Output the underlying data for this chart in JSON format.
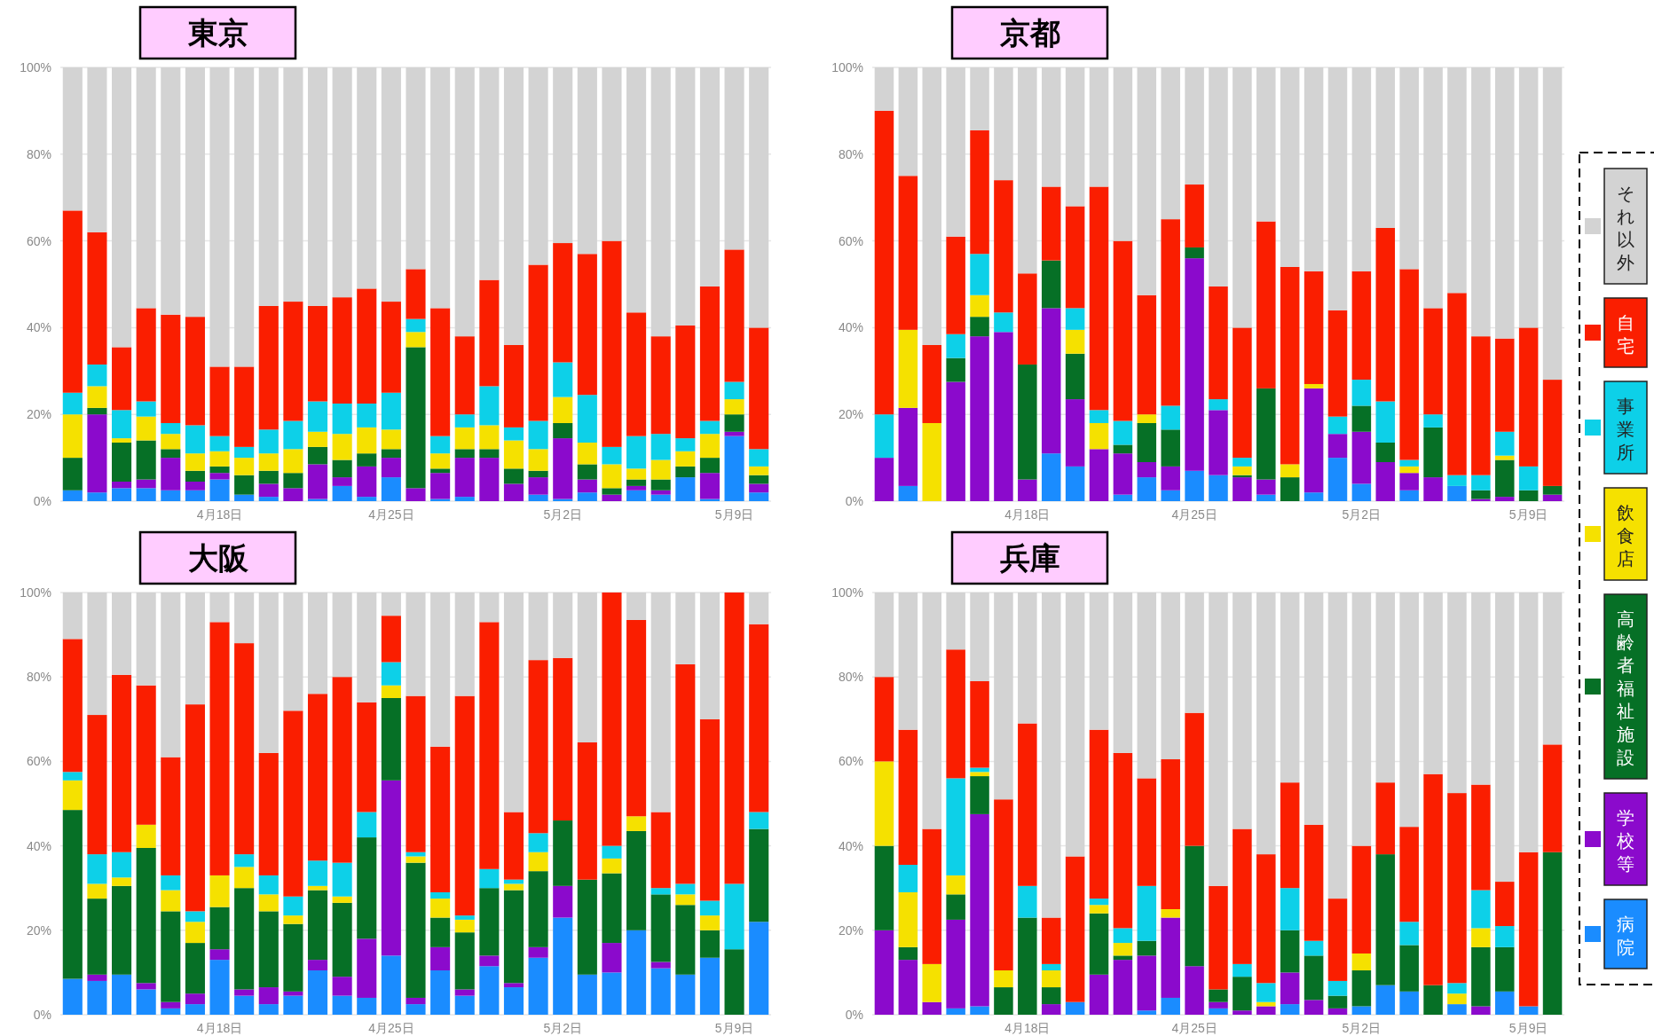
{
  "chart_data": [
    {
      "type": "bar",
      "title": "東京",
      "stacked": true,
      "grid": "y",
      "ylim": [
        0,
        100
      ],
      "yticks": [
        {
          "value": 0,
          "label": "0%"
        },
        {
          "value": 20,
          "label": "20%"
        },
        {
          "value": 40,
          "label": "40%"
        },
        {
          "value": 60,
          "label": "60%"
        },
        {
          "value": 80,
          "label": "80%"
        },
        {
          "value": 100,
          "label": "100%"
        }
      ],
      "categories": [
        null,
        null,
        null,
        null,
        null,
        null,
        "4月18日",
        null,
        null,
        null,
        null,
        null,
        null,
        "4月25日",
        null,
        null,
        null,
        null,
        null,
        null,
        "5月2日",
        null,
        null,
        null,
        null,
        null,
        null,
        "5月9日",
        null
      ],
      "series": [
        {
          "color": "#1a8cff",
          "values": [
            2.5,
            2,
            3,
            3,
            2.5,
            2.5,
            5,
            1.5,
            1,
            0,
            0.5,
            3.5,
            1,
            5.5,
            0,
            0.5,
            1,
            0,
            0,
            1.5,
            0.5,
            2,
            0,
            2.5,
            1.5,
            5.5,
            0.5,
            15,
            2
          ]
        },
        {
          "color": "#8b0acc",
          "values": [
            0,
            18,
            1.5,
            2,
            7.5,
            2,
            1.5,
            0,
            3,
            3,
            8,
            2,
            7,
            4.5,
            3,
            6,
            9,
            10,
            4,
            4,
            14,
            3,
            1.5,
            1,
            1,
            0,
            6,
            1,
            2
          ]
        },
        {
          "color": "#067026",
          "values": [
            7.5,
            1.5,
            9,
            9,
            2,
            2.5,
            1.5,
            4.5,
            3,
            3.5,
            4,
            4,
            3,
            2,
            32.5,
            1,
            2,
            2,
            3.5,
            1.5,
            3.5,
            3.5,
            1.5,
            1.5,
            2.5,
            2.5,
            3.5,
            4,
            2
          ]
        },
        {
          "color": "#f5e100",
          "values": [
            10,
            5,
            1,
            5.5,
            3.5,
            4,
            3.5,
            4,
            4,
            5.5,
            3.5,
            6,
            6,
            4.5,
            3.5,
            3.5,
            5,
            5.5,
            6.5,
            5,
            6,
            5,
            5.5,
            2.5,
            4.5,
            3.5,
            5.5,
            3.5,
            2
          ]
        },
        {
          "color": "#0dd0e8",
          "values": [
            5,
            5,
            6.5,
            3.5,
            2.5,
            6.5,
            3.5,
            2.5,
            5.5,
            6.5,
            7,
            7,
            5.5,
            8.5,
            3,
            4,
            3,
            9,
            3,
            6.5,
            8,
            11,
            4,
            7.5,
            6,
            3,
            3,
            4,
            4
          ]
        },
        {
          "color": "#fa1e00",
          "values": [
            42,
            30.5,
            14.5,
            21.5,
            25,
            25,
            16,
            18.5,
            28.5,
            27.5,
            22,
            24.5,
            26.5,
            21,
            11.5,
            29.5,
            18,
            24.5,
            19,
            36,
            27.5,
            32.5,
            47.5,
            28.5,
            22.5,
            26,
            31,
            30.5,
            28
          ]
        },
        {
          "color": "#d3d3d3",
          "values": [
            33,
            38,
            64.5,
            55.5,
            57,
            57.5,
            69,
            69,
            55,
            54,
            55,
            53,
            51,
            54,
            46.5,
            55.5,
            62,
            49,
            64,
            45.5,
            40.5,
            43,
            40,
            56.5,
            62,
            59.5,
            50.5,
            42,
            60
          ]
        }
      ]
    },
    {
      "type": "bar",
      "title": "京都",
      "stacked": true,
      "grid": "y",
      "legend": "right",
      "ylim": [
        0,
        100
      ],
      "yticks": [
        {
          "value": 0,
          "label": "0%"
        },
        {
          "value": 20,
          "label": "20%"
        },
        {
          "value": 40,
          "label": "40%"
        },
        {
          "value": 60,
          "label": "60%"
        },
        {
          "value": 80,
          "label": "80%"
        },
        {
          "value": 100,
          "label": "100%"
        }
      ],
      "categories": [
        null,
        null,
        null,
        null,
        null,
        null,
        "4月18日",
        null,
        null,
        null,
        null,
        null,
        null,
        "4月25日",
        null,
        null,
        null,
        null,
        null,
        null,
        "5月2日",
        null,
        null,
        null,
        null,
        null,
        null,
        "5月9日",
        null
      ],
      "series": [
        {
          "name": "病院",
          "color": "#1a8cff",
          "values": [
            0,
            3.5,
            0,
            0,
            0,
            0,
            0,
            11,
            8,
            0,
            1.5,
            5.5,
            2.5,
            7,
            6,
            0,
            1.5,
            0,
            2,
            10,
            4,
            0,
            2.5,
            0,
            3.5,
            0,
            0,
            0,
            0
          ]
        },
        {
          "name": "学校等",
          "color": "#8b0acc",
          "values": [
            10,
            18,
            0,
            27.5,
            38,
            39,
            5,
            33.5,
            15.5,
            12,
            9.5,
            3.5,
            5.5,
            49,
            15,
            5.5,
            3.5,
            0,
            24,
            5.5,
            12,
            9,
            4,
            5.5,
            0,
            0.5,
            1,
            0,
            1.5
          ]
        },
        {
          "name": "高齢者福祉施設",
          "color": "#067026",
          "values": [
            0,
            0,
            0,
            5.5,
            4.5,
            0,
            26.5,
            11,
            10.5,
            0,
            2,
            9,
            8.5,
            2.5,
            0,
            0.5,
            21,
            5.5,
            0,
            0,
            6,
            4.5,
            0,
            11.5,
            0,
            2,
            8.5,
            2.5,
            2
          ]
        },
        {
          "name": "飲食店",
          "color": "#f5e100",
          "values": [
            0,
            18,
            18,
            0,
            5,
            0,
            0,
            0,
            5.5,
            6,
            0,
            2,
            0,
            0,
            0,
            2,
            0,
            3,
            1,
            0,
            0,
            0,
            1.5,
            0,
            0,
            0,
            1,
            0,
            0
          ]
        },
        {
          "name": "事業所",
          "color": "#0dd0e8",
          "values": [
            10,
            0,
            0,
            5.5,
            9.5,
            4.5,
            0,
            0,
            5,
            3,
            5.5,
            0,
            5.5,
            0,
            2.5,
            2,
            0,
            0,
            0,
            4,
            6,
            9.5,
            1.5,
            3,
            2.5,
            3.5,
            5.5,
            5.5,
            0
          ]
        },
        {
          "name": "自宅",
          "color": "#fa1e00",
          "values": [
            70,
            35.5,
            18,
            22.5,
            28.5,
            30.5,
            21,
            17,
            23.5,
            51.5,
            41.5,
            27.5,
            43,
            14.5,
            26,
            30,
            38.5,
            45.5,
            26,
            24.5,
            25,
            40,
            44,
            24.5,
            42,
            32,
            21.5,
            32,
            24.5
          ]
        },
        {
          "name": "それ以外",
          "color": "#d3d3d3",
          "values": [
            10,
            25,
            64,
            39,
            14.5,
            26,
            47.5,
            27.5,
            32,
            27.5,
            40,
            52.5,
            35,
            27,
            50.5,
            60,
            35.5,
            46,
            47,
            56,
            47,
            37,
            46.5,
            55.5,
            52,
            62,
            62.5,
            60,
            72
          ]
        }
      ]
    },
    {
      "type": "bar",
      "title": "大阪",
      "stacked": true,
      "grid": "y",
      "ylim": [
        0,
        100
      ],
      "yticks": [
        {
          "value": 0,
          "label": "0%"
        },
        {
          "value": 20,
          "label": "20%"
        },
        {
          "value": 40,
          "label": "40%"
        },
        {
          "value": 60,
          "label": "60%"
        },
        {
          "value": 80,
          "label": "80%"
        },
        {
          "value": 100,
          "label": "100%"
        }
      ],
      "categories": [
        null,
        null,
        null,
        null,
        null,
        null,
        "4月18日",
        null,
        null,
        null,
        null,
        null,
        null,
        "4月25日",
        null,
        null,
        null,
        null,
        null,
        null,
        "5月2日",
        null,
        null,
        null,
        null,
        null,
        null,
        "5月9日",
        null
      ],
      "series": [
        {
          "color": "#1a8cff",
          "values": [
            8.5,
            8,
            9.5,
            6,
            1.5,
            2.5,
            13,
            4.5,
            2.5,
            4.5,
            10.5,
            4.5,
            4,
            14,
            2.5,
            10.5,
            4.5,
            11.5,
            6.5,
            13.5,
            23,
            9.5,
            10,
            20,
            11,
            9.5,
            13.5,
            0,
            22
          ]
        },
        {
          "color": "#8b0acc",
          "values": [
            0,
            1.5,
            0,
            1.5,
            1.5,
            2.5,
            2.5,
            1.5,
            4,
            1,
            2.5,
            4.5,
            14,
            41.5,
            1.5,
            5.5,
            1.5,
            2.5,
            1,
            2.5,
            7.5,
            0,
            7,
            0,
            1.5,
            0,
            0,
            0,
            0
          ]
        },
        {
          "color": "#067026",
          "values": [
            40,
            18,
            21,
            32,
            21.5,
            12,
            10,
            24,
            18,
            16,
            16.5,
            17.5,
            24,
            19.5,
            32,
            7,
            13.5,
            16,
            22,
            18,
            15.5,
            22.5,
            16.5,
            23.5,
            16,
            16.5,
            6.5,
            15.5,
            22
          ]
        },
        {
          "color": "#f5e100",
          "values": [
            7,
            3.5,
            2,
            5.5,
            5,
            5,
            7.5,
            5,
            4,
            2,
            1,
            1.5,
            0,
            3,
            1.5,
            4.5,
            3,
            0,
            1.5,
            4.5,
            0,
            0,
            3.5,
            3.5,
            0,
            2.5,
            3.5,
            0,
            0
          ]
        },
        {
          "color": "#0dd0e8",
          "values": [
            2,
            7,
            6,
            0,
            3.5,
            2.5,
            0,
            3,
            4.5,
            4.5,
            6,
            8,
            6,
            5.5,
            1,
            1.5,
            1,
            4.5,
            1,
            4.5,
            0,
            0,
            3,
            0,
            1.5,
            2.5,
            3.5,
            15.5,
            4
          ]
        },
        {
          "color": "#fa1e00",
          "values": [
            31.5,
            33,
            42,
            33,
            28,
            49,
            60,
            50,
            29,
            44,
            39.5,
            44,
            26,
            11,
            37,
            34.5,
            52,
            58.5,
            16,
            41,
            38.5,
            32.5,
            60,
            46.5,
            18,
            52,
            43,
            69,
            44.5
          ]
        },
        {
          "color": "#d3d3d3",
          "values": [
            11,
            29,
            19.5,
            22,
            39,
            26.5,
            7,
            12,
            38,
            28,
            24,
            20,
            26,
            5.5,
            24.5,
            36.5,
            24.5,
            7,
            52,
            16,
            15.5,
            35.5,
            0,
            6.5,
            52,
            17,
            30,
            0,
            7.5
          ]
        }
      ]
    },
    {
      "type": "bar",
      "title": "兵庫",
      "stacked": true,
      "grid": "y",
      "ylim": [
        0,
        100
      ],
      "yticks": [
        {
          "value": 0,
          "label": "0%"
        },
        {
          "value": 20,
          "label": "20%"
        },
        {
          "value": 40,
          "label": "40%"
        },
        {
          "value": 60,
          "label": "60%"
        },
        {
          "value": 80,
          "label": "80%"
        },
        {
          "value": 100,
          "label": "100%"
        }
      ],
      "categories": [
        null,
        null,
        null,
        null,
        null,
        null,
        "4月18日",
        null,
        null,
        null,
        null,
        null,
        null,
        "4月25日",
        null,
        null,
        null,
        null,
        null,
        null,
        "5月2日",
        null,
        null,
        null,
        null,
        null,
        null,
        "5月9日",
        null
      ],
      "series": [
        {
          "color": "#1a8cff",
          "values": [
            0,
            0,
            0,
            1.5,
            2,
            0,
            0,
            0,
            3,
            0,
            0,
            1,
            4,
            0,
            1.5,
            0,
            0,
            2.5,
            0,
            0,
            2,
            7,
            5.5,
            0,
            2.5,
            0,
            5.5,
            2,
            0
          ]
        },
        {
          "color": "#8b0acc",
          "values": [
            20,
            13,
            3,
            21,
            45.5,
            0,
            0,
            2.5,
            0,
            9.5,
            13,
            13,
            19,
            11.5,
            1.5,
            1,
            2,
            7.5,
            3.5,
            1.5,
            0,
            0,
            0,
            0,
            0,
            2,
            0,
            0,
            0
          ]
        },
        {
          "color": "#067026",
          "values": [
            20,
            3,
            0,
            6,
            9,
            6.5,
            23,
            4,
            0,
            14.5,
            1,
            3.5,
            0,
            28.5,
            3,
            8,
            0,
            10,
            10.5,
            3,
            8.5,
            31,
            11,
            7,
            0,
            14,
            10.5,
            0,
            38.5
          ]
        },
        {
          "color": "#f5e100",
          "values": [
            20,
            13,
            9,
            4.5,
            1,
            4,
            0,
            4,
            0,
            2,
            3,
            0,
            2,
            0,
            0,
            0,
            1,
            0,
            0,
            0,
            4,
            0,
            0,
            0,
            2.5,
            4.5,
            0,
            0,
            0
          ]
        },
        {
          "color": "#0dd0e8",
          "values": [
            0,
            6.5,
            0,
            23,
            1,
            0,
            7.5,
            1.5,
            0,
            1.5,
            3.5,
            13,
            0,
            0,
            0,
            3,
            4.5,
            10,
            3.5,
            3.5,
            0,
            0,
            5.5,
            0,
            2.5,
            9,
            5,
            0,
            0
          ]
        },
        {
          "color": "#fa1e00",
          "values": [
            20,
            32,
            32,
            30.5,
            20.5,
            40.5,
            38.5,
            11,
            34.5,
            40,
            41.5,
            25.5,
            35.5,
            31.5,
            24.5,
            32,
            30.5,
            25,
            27.5,
            19.5,
            25.5,
            17,
            22.5,
            50,
            45,
            25,
            10.5,
            36.5,
            25.5
          ]
        },
        {
          "color": "#d3d3d3",
          "values": [
            20,
            32.5,
            56,
            13.5,
            21,
            49,
            31,
            77,
            62.5,
            32.5,
            38,
            44,
            39.5,
            28.5,
            69.5,
            56,
            62,
            45,
            55,
            72.5,
            60,
            45,
            55.5,
            43,
            47.5,
            45.5,
            68.5,
            61.5,
            36
          ]
        }
      ]
    }
  ]
}
